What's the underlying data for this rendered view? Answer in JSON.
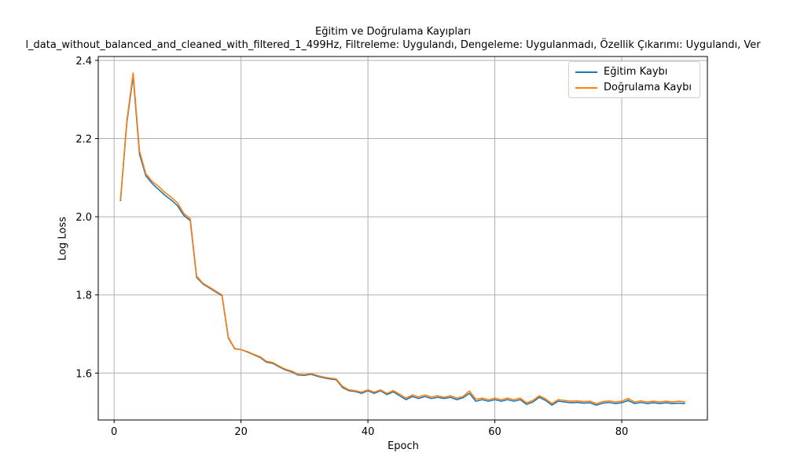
{
  "chart_data": {
    "type": "line",
    "title": "Eğitim ve Doğrulama Kayıpları",
    "subtitle": "l_data_without_balanced_and_cleaned_with_filtered_1_499Hz, Filtreleme: Uygulandı, Dengeleme: Uygulanmadı, Özellik Çıkarımı: Uygulandı, Ver",
    "xlabel": "Epoch",
    "ylabel": "Log Loss",
    "xlim": [
      -2.5,
      93.5
    ],
    "ylim": [
      1.48,
      2.41
    ],
    "xticks": [
      0,
      20,
      40,
      60,
      80
    ],
    "yticks": [
      1.6,
      1.8,
      2.0,
      2.2,
      2.4
    ],
    "grid": true,
    "legend_position": "top-right",
    "series": [
      {
        "name": "Eğitim Kaybı",
        "color": "#1f77b4",
        "x": [
          1,
          2,
          3,
          4,
          5,
          6,
          7,
          8,
          9,
          10,
          11,
          12,
          13,
          14,
          15,
          16,
          17,
          18,
          19,
          20,
          21,
          22,
          23,
          24,
          25,
          26,
          27,
          28,
          29,
          30,
          31,
          32,
          33,
          34,
          35,
          36,
          37,
          38,
          39,
          40,
          41,
          42,
          43,
          44,
          45,
          46,
          47,
          48,
          49,
          50,
          51,
          52,
          53,
          54,
          55,
          56,
          57,
          58,
          59,
          60,
          61,
          62,
          63,
          64,
          65,
          66,
          67,
          68,
          69,
          70,
          71,
          72,
          73,
          74,
          75,
          76,
          77,
          78,
          79,
          80,
          81,
          82,
          83,
          84,
          85,
          86,
          87,
          88,
          89,
          90
        ],
        "values": [
          2.04,
          2.24,
          2.36,
          2.16,
          2.105,
          2.085,
          2.07,
          2.055,
          2.043,
          2.028,
          2.003,
          1.99,
          1.845,
          1.828,
          1.818,
          1.808,
          1.798,
          1.69,
          1.662,
          1.66,
          1.654,
          1.647,
          1.64,
          1.628,
          1.625,
          1.616,
          1.608,
          1.603,
          1.595,
          1.594,
          1.597,
          1.592,
          1.588,
          1.585,
          1.583,
          1.563,
          1.555,
          1.553,
          1.548,
          1.555,
          1.548,
          1.555,
          1.545,
          1.552,
          1.542,
          1.532,
          1.54,
          1.535,
          1.54,
          1.535,
          1.538,
          1.535,
          1.538,
          1.532,
          1.537,
          1.548,
          1.528,
          1.532,
          1.528,
          1.532,
          1.528,
          1.532,
          1.528,
          1.532,
          1.52,
          1.526,
          1.538,
          1.53,
          1.518,
          1.528,
          1.526,
          1.524,
          1.525,
          1.523,
          1.524,
          1.518,
          1.523,
          1.525,
          1.522,
          1.524,
          1.53,
          1.522,
          1.525,
          1.522,
          1.524,
          1.522,
          1.524,
          1.522,
          1.523,
          1.522
        ]
      },
      {
        "name": "Doğrulama Kaybı",
        "color": "#ff7f0e",
        "x": [
          1,
          2,
          3,
          4,
          5,
          6,
          7,
          8,
          9,
          10,
          11,
          12,
          13,
          14,
          15,
          16,
          17,
          18,
          19,
          20,
          21,
          22,
          23,
          24,
          25,
          26,
          27,
          28,
          29,
          30,
          31,
          32,
          33,
          34,
          35,
          36,
          37,
          38,
          39,
          40,
          41,
          42,
          43,
          44,
          45,
          46,
          47,
          48,
          49,
          50,
          51,
          52,
          53,
          54,
          55,
          56,
          57,
          58,
          59,
          60,
          61,
          62,
          63,
          64,
          65,
          66,
          67,
          68,
          69,
          70,
          71,
          72,
          73,
          74,
          75,
          76,
          77,
          78,
          79,
          80,
          81,
          82,
          83,
          84,
          85,
          86,
          87,
          88,
          89,
          90
        ],
        "values": [
          2.043,
          2.245,
          2.368,
          2.168,
          2.11,
          2.09,
          2.078,
          2.062,
          2.05,
          2.035,
          2.008,
          1.995,
          1.848,
          1.83,
          1.82,
          1.81,
          1.8,
          1.692,
          1.663,
          1.66,
          1.655,
          1.648,
          1.642,
          1.63,
          1.627,
          1.618,
          1.61,
          1.605,
          1.597,
          1.596,
          1.599,
          1.594,
          1.59,
          1.587,
          1.585,
          1.566,
          1.557,
          1.555,
          1.551,
          1.557,
          1.551,
          1.557,
          1.548,
          1.555,
          1.546,
          1.536,
          1.544,
          1.539,
          1.544,
          1.539,
          1.542,
          1.538,
          1.542,
          1.536,
          1.54,
          1.554,
          1.533,
          1.536,
          1.532,
          1.536,
          1.532,
          1.536,
          1.532,
          1.536,
          1.524,
          1.53,
          1.542,
          1.534,
          1.522,
          1.532,
          1.53,
          1.528,
          1.529,
          1.527,
          1.528,
          1.522,
          1.527,
          1.529,
          1.526,
          1.528,
          1.535,
          1.526,
          1.529,
          1.526,
          1.528,
          1.526,
          1.528,
          1.526,
          1.528,
          1.526
        ]
      }
    ]
  }
}
